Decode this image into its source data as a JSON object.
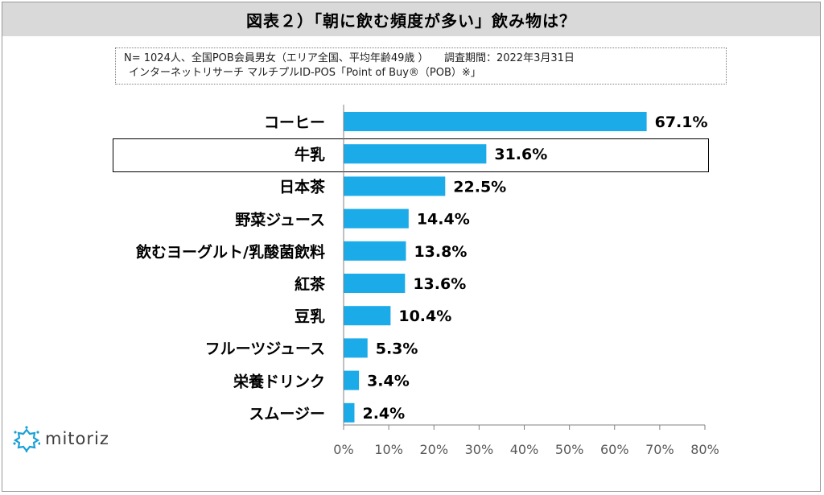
{
  "title": "図表２）「朝に飲む頻度が多い」飲み物は？",
  "note": {
    "line1": "N= 1024人、全国POB会員男女（エリア全国、平均年齢49歳 ）　　調査期間：2022年3月31日",
    "line2": "インターネットリサーチ マルチプルID-POS「Point of Buy®（POB）※」"
  },
  "logo": {
    "text": "mitoriz",
    "icon": "sun-burst-logo-icon",
    "accent": "#1aa0d8"
  },
  "colors": {
    "bar": "#1aabe8",
    "axis": "#808080"
  },
  "chart_data": {
    "type": "bar",
    "orientation": "horizontal",
    "title": "図表２）「朝に飲む頻度が多い」飲み物は？",
    "categories": [
      "コーヒー",
      "牛乳",
      "日本茶",
      "野菜ジュース",
      "飲むヨーグルト/乳酸菌飲料",
      "紅茶",
      "豆乳",
      "フルーツジュース",
      "栄養ドリンク",
      "スムージー"
    ],
    "values": [
      67.1,
      31.6,
      22.5,
      14.4,
      13.8,
      13.6,
      10.4,
      5.3,
      3.4,
      2.4
    ],
    "value_labels": [
      "67.1%",
      "31.6%",
      "22.5%",
      "14.4%",
      "13.8%",
      "13.6%",
      "10.4%",
      "5.3%",
      "3.4%",
      "2.4%"
    ],
    "xlim": [
      0,
      80
    ],
    "x_ticks": [
      "0%",
      "10%",
      "20%",
      "30%",
      "40%",
      "50%",
      "60%",
      "70%",
      "80%"
    ],
    "highlighted_category": "牛乳",
    "grid": false,
    "legend": "none"
  }
}
